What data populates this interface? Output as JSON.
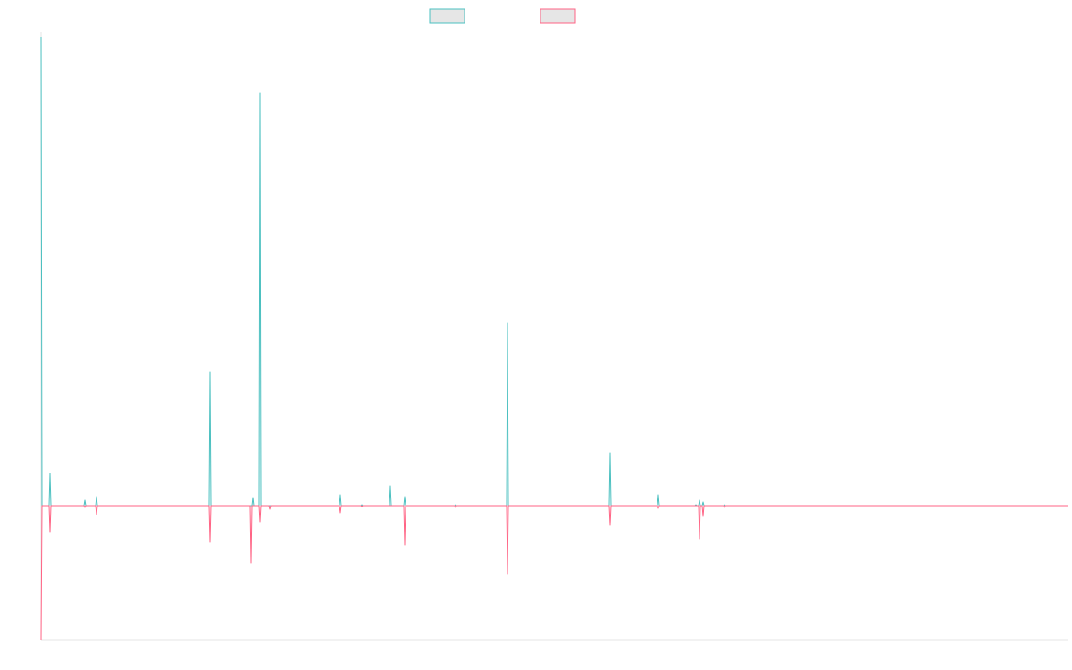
{
  "chart_data": {
    "type": "line",
    "title": "",
    "xlabel": "",
    "ylabel": "",
    "grid": false,
    "legend_position": "top-center",
    "ylim": [
      -150,
      530
    ],
    "x": [
      0,
      1,
      2,
      3,
      4,
      5,
      6,
      7,
      8,
      9,
      10,
      11,
      12,
      13,
      14,
      15,
      16,
      17,
      18,
      19,
      20,
      21,
      22,
      23,
      24,
      25,
      26,
      27,
      28,
      29,
      30,
      31,
      32,
      33,
      34,
      35,
      36,
      37,
      38,
      39,
      40,
      41,
      42,
      43,
      44,
      45,
      46,
      47,
      48,
      49,
      50,
      51,
      52,
      53,
      54,
      55,
      56,
      57,
      58,
      59,
      60,
      61,
      62,
      63,
      64,
      65,
      66,
      67,
      68,
      69,
      70,
      71,
      72,
      73,
      74,
      75,
      76,
      77,
      78,
      79,
      80,
      81,
      82,
      83,
      84,
      85,
      86,
      87,
      88,
      89,
      90,
      91,
      92,
      93,
      94,
      95,
      96,
      97,
      98,
      99,
      100,
      101,
      102,
      103,
      104,
      105,
      106,
      107,
      108,
      109,
      110,
      111,
      112,
      113,
      114,
      115,
      116,
      117,
      118,
      119,
      120,
      121,
      122,
      123,
      124,
      125,
      126,
      127,
      128,
      129,
      130,
      131,
      132,
      133,
      134,
      135,
      136,
      137,
      138,
      139,
      140,
      141,
      142,
      143,
      144,
      145,
      146,
      147,
      148,
      149,
      150,
      151,
      152,
      153,
      154,
      155,
      156,
      157,
      158,
      159,
      160,
      161,
      162,
      163,
      164,
      165,
      166,
      167,
      168,
      169,
      170,
      171,
      172,
      173,
      174,
      175,
      176,
      177,
      178,
      179,
      180,
      181,
      182,
      183,
      184,
      185,
      186,
      187,
      188,
      189,
      190,
      191,
      192,
      193,
      194,
      195,
      196,
      197,
      198,
      199,
      200,
      201,
      202,
      203,
      204,
      205,
      206,
      207,
      208,
      209,
      210,
      211,
      212,
      213,
      214,
      215,
      216,
      217,
      218,
      219,
      220,
      221,
      222,
      223,
      224,
      225,
      226,
      227,
      228,
      229,
      230,
      231,
      232,
      233,
      234,
      235,
      236,
      237,
      238,
      239,
      240,
      241,
      242,
      243,
      244,
      245,
      246,
      247,
      248,
      249,
      250,
      251,
      252,
      253,
      254,
      255,
      256,
      257,
      258,
      259,
      260,
      261,
      262,
      263,
      264,
      265,
      266,
      267,
      268,
      269,
      270,
      271,
      272,
      273,
      274,
      275,
      276,
      277,
      278,
      279,
      280,
      281,
      282,
      283,
      284,
      285,
      286,
      287,
      288,
      289,
      290,
      291,
      292,
      293,
      294,
      295,
      296,
      297,
      298,
      299,
      300,
      301,
      302,
      303,
      304,
      305,
      306,
      307,
      308,
      309,
      310,
      311,
      312,
      313,
      314,
      315,
      316,
      317,
      318,
      319,
      320,
      321,
      322,
      323,
      324,
      325,
      326,
      327,
      328,
      329,
      330,
      331,
      332,
      333,
      334,
      335,
      336,
      337,
      338,
      339,
      340,
      341,
      342,
      343,
      344,
      345,
      346,
      347,
      348,
      349,
      350,
      351,
      352,
      353,
      354,
      355,
      356,
      357,
      358,
      359,
      360,
      361,
      362,
      363,
      364,
      365,
      366,
      367,
      368,
      369,
      370,
      371,
      372,
      373,
      374,
      375,
      376,
      377,
      378,
      379,
      380,
      381,
      382,
      383,
      384,
      385,
      386,
      387,
      388,
      389,
      390,
      391,
      392,
      393,
      394,
      395,
      396,
      397,
      398,
      399,
      400,
      401,
      402,
      403,
      404,
      405,
      406,
      407,
      408,
      409,
      410,
      411,
      412,
      413,
      414,
      415,
      416,
      417,
      418,
      419,
      420,
      421,
      422,
      423,
      424,
      425,
      426,
      427,
      428,
      429,
      430,
      431,
      432,
      433,
      434,
      435,
      436,
      437,
      438,
      439,
      440,
      441,
      442,
      443,
      444,
      445,
      446,
      447,
      448,
      449,
      450,
      451,
      452,
      453,
      454,
      455,
      456,
      457,
      458,
      459,
      460,
      461,
      462,
      463,
      464,
      465,
      466,
      467,
      468,
      469,
      470,
      471,
      472,
      473,
      474,
      475,
      476,
      477,
      478,
      479,
      480,
      481,
      482,
      483,
      484,
      485,
      486,
      487,
      488,
      489,
      490,
      491,
      492,
      493,
      494,
      495,
      496,
      497,
      498,
      499,
      500,
      501,
      502,
      503,
      504,
      505,
      506,
      507,
      508,
      509,
      510,
      511,
      512,
      513,
      514,
      515,
      516,
      517,
      518,
      519,
      520,
      521,
      522,
      523,
      524,
      525,
      526,
      527,
      528,
      529,
      530,
      531,
      532,
      533,
      534,
      535,
      536,
      537,
      538,
      539,
      540,
      541,
      542,
      543,
      544,
      545,
      546,
      547,
      548,
      549,
      550,
      551,
      552,
      553,
      554,
      555,
      556,
      557,
      558,
      559,
      560,
      561,
      562,
      563,
      564,
      565,
      566,
      567,
      568,
      569,
      570,
      571,
      572,
      573,
      574,
      575,
      576,
      577,
      578,
      579,
      580,
      581,
      582,
      583,
      584,
      585,
      586,
      587,
      588,
      589,
      590,
      591,
      592,
      593,
      594,
      595,
      596,
      597,
      598,
      599,
      600,
      601,
      602,
      603,
      604,
      605,
      606,
      607,
      608,
      609,
      610,
      611,
      612,
      613,
      614,
      615,
      616,
      617,
      618,
      619,
      620,
      621,
      622,
      623,
      624,
      625,
      626,
      627,
      628,
      629,
      630,
      631,
      632,
      633,
      634,
      635,
      636,
      637,
      638,
      639,
      640,
      641,
      642,
      643,
      644,
      645,
      646,
      647,
      648,
      649,
      650,
      651,
      652,
      653,
      654,
      655,
      656,
      657,
      658,
      659,
      660,
      661,
      662,
      663,
      664,
      665,
      666,
      667,
      668,
      669,
      670,
      671,
      672,
      673,
      674,
      675,
      676,
      677,
      678,
      679,
      680,
      681,
      682,
      683,
      684,
      685,
      686,
      687,
      688,
      689,
      690,
      691,
      692,
      693,
      694,
      695,
      696,
      697,
      698,
      699,
      700,
      701,
      702,
      703,
      704,
      705,
      706,
      707,
      708,
      709,
      710,
      711,
      712,
      713,
      714,
      715,
      716,
      717,
      718,
      719,
      720,
      721,
      722,
      723,
      724,
      725,
      726,
      727,
      728,
      729,
      730,
      731,
      732,
      733,
      734,
      735,
      736,
      737,
      738,
      739,
      740,
      741,
      742,
      743,
      744,
      745,
      746,
      747,
      748,
      749,
      750,
      751,
      752,
      753,
      754,
      755,
      756,
      757,
      758,
      759,
      760,
      761,
      762,
      763,
      764,
      765,
      766,
      767,
      768,
      769,
      770,
      771,
      772,
      773,
      774,
      775,
      776,
      777,
      778,
      779,
      780,
      781,
      782,
      783,
      784,
      785,
      786,
      787,
      788,
      789,
      790,
      791,
      792,
      793,
      794,
      795,
      796,
      797,
      798,
      799,
      800,
      801,
      802,
      803,
      804,
      805,
      806,
      807,
      808,
      809,
      810,
      811,
      812,
      813,
      814,
      815,
      816,
      817,
      818,
      819,
      820,
      821,
      822,
      823,
      824,
      825,
      826,
      827,
      828,
      829,
      830,
      831,
      832,
      833,
      834,
      835,
      836,
      837,
      838,
      839,
      840,
      841,
      842,
      843,
      844,
      845,
      846,
      847,
      848,
      849,
      850,
      851,
      852,
      853,
      854,
      855,
      856,
      857,
      858,
      859,
      860,
      861,
      862,
      863,
      864,
      865,
      866,
      867,
      868,
      869,
      870,
      871,
      872,
      873,
      874,
      875,
      876,
      877,
      878,
      879,
      880,
      881,
      882,
      883,
      884,
      885,
      886,
      887,
      888,
      889,
      890,
      891,
      892,
      893,
      894,
      895,
      896,
      897,
      898,
      899,
      900,
      901,
      902,
      903,
      904,
      905,
      906,
      907,
      908,
      909,
      910,
      911,
      912,
      913,
      914,
      915,
      916,
      917,
      918,
      919,
      920,
      921,
      922,
      923,
      924,
      925,
      926,
      927,
      928,
      929,
      930,
      931,
      932,
      933,
      934,
      935,
      936,
      937,
      938,
      939,
      940,
      941,
      942,
      943,
      944,
      945,
      946,
      947,
      948,
      949,
      950,
      951,
      952,
      953,
      954,
      955,
      956,
      957,
      958,
      959,
      960,
      961,
      962,
      963,
      964,
      965,
      966,
      967,
      968,
      969,
      970,
      971,
      972,
      973,
      974,
      975,
      976,
      977,
      978,
      979,
      980,
      981,
      982,
      983,
      984,
      985,
      986,
      987,
      988,
      989,
      990,
      991,
      992,
      993,
      994,
      995,
      996,
      997,
      998,
      999,
      1000,
      1001,
      1002,
      1003,
      1004,
      1005,
      1006,
      1007,
      1008,
      1009,
      1010,
      1011,
      1012,
      1013,
      1014,
      1015,
      1016,
      1017,
      1018,
      1019,
      1020,
      1021,
      1022,
      1023,
      1024,
      1025,
      1026,
      1027,
      1028,
      1029,
      1030,
      1031,
      1032,
      1033,
      1034,
      1035,
      1036,
      1037,
      1038,
      1039,
      1040,
      1041,
      1042,
      1043,
      1044,
      1045,
      1046,
      1047,
      1048,
      1049,
      1050,
      1051,
      1052,
      1053,
      1054,
      1055,
      1056,
      1057,
      1058,
      1059,
      1060,
      1061,
      1062,
      1063,
      1064,
      1065,
      1066,
      1067,
      1068,
      1069,
      1070,
      1071,
      1072,
      1073,
      1074,
      1075,
      1076,
      1077,
      1078,
      1079,
      1080,
      1081,
      1082,
      1083,
      1084,
      1085,
      1086,
      1087,
      1088,
      1089,
      1090,
      1091,
      1092,
      1093,
      1094,
      1095,
      1096,
      1097,
      1098,
      1099,
      1100,
      1101,
      1102,
      1103,
      1104,
      1105,
      1106,
      1107,
      1108,
      1109,
      1110,
      1111,
      1112,
      1113,
      1114,
      1115,
      1116,
      1117,
      1118,
      1119,
      1120,
      1121,
      1122,
      1123,
      1124,
      1125,
      1126,
      1127,
      1128,
      1129,
      1130,
      1131,
      1132,
      1133,
      1134,
      1135,
      1136,
      1137,
      1138,
      1139,
      1140,
      1141,
      1142,
      1143,
      1144,
      1145,
      1146,
      1147,
      1148,
      1149
    ],
    "series": [
      {
        "color": "#4BC0C0",
        "fill": "#E6E6E6",
        "spikes": [
          [
            0,
            525
          ],
          [
            10,
            36
          ],
          [
            49,
            6
          ],
          [
            62,
            10
          ],
          [
            189,
            150
          ],
          [
            237,
            9
          ],
          [
            245,
            462
          ],
          [
            335,
            12
          ],
          [
            359,
            1
          ],
          [
            391,
            22
          ],
          [
            407,
            10
          ],
          [
            464,
            1
          ],
          [
            522,
            204
          ],
          [
            637,
            59
          ],
          [
            691,
            12
          ],
          [
            733,
            1
          ],
          [
            737,
            6
          ],
          [
            741,
            4
          ],
          [
            765,
            1
          ]
        ]
      },
      {
        "color": "#FF6384",
        "fill": "#E6E6E6",
        "spikes": [
          [
            0,
            -150
          ],
          [
            10,
            -30
          ],
          [
            49,
            -2
          ],
          [
            62,
            -10
          ],
          [
            189,
            -41
          ],
          [
            235,
            -64
          ],
          [
            245,
            -18
          ],
          [
            256,
            -4
          ],
          [
            335,
            -8
          ],
          [
            359,
            -1
          ],
          [
            407,
            -44
          ],
          [
            464,
            -2
          ],
          [
            522,
            -77
          ],
          [
            637,
            -22
          ],
          [
            691,
            -3
          ],
          [
            737,
            -37
          ],
          [
            741,
            -12
          ],
          [
            765,
            -2
          ]
        ]
      }
    ]
  }
}
